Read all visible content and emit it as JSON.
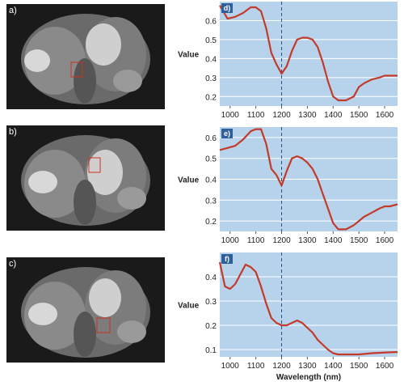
{
  "images": [
    {
      "label": "a)"
    },
    {
      "label": "b)"
    },
    {
      "label": "c)"
    }
  ],
  "chart_data": [
    {
      "type": "line",
      "panel_label": "d)",
      "ylabel": "Value",
      "xlabel": "",
      "xlim": [
        960,
        1650
      ],
      "ylim": [
        0.15,
        0.7
      ],
      "yticks": [
        0.2,
        0.3,
        0.4,
        0.5,
        0.6
      ],
      "xticks": [
        1000,
        1100,
        1200,
        1300,
        1400,
        1500,
        1600
      ],
      "grid": true,
      "dashed_line_x": 1200,
      "line_color": "#c43a2a",
      "x": [
        960,
        990,
        1020,
        1050,
        1080,
        1100,
        1120,
        1140,
        1160,
        1180,
        1200,
        1220,
        1240,
        1260,
        1280,
        1300,
        1320,
        1340,
        1360,
        1380,
        1400,
        1420,
        1450,
        1480,
        1500,
        1520,
        1550,
        1580,
        1600,
        1620,
        1650
      ],
      "y": [
        0.68,
        0.61,
        0.62,
        0.64,
        0.67,
        0.67,
        0.65,
        0.56,
        0.43,
        0.37,
        0.32,
        0.36,
        0.44,
        0.5,
        0.51,
        0.51,
        0.5,
        0.46,
        0.38,
        0.28,
        0.2,
        0.18,
        0.18,
        0.2,
        0.25,
        0.27,
        0.29,
        0.3,
        0.31,
        0.31,
        0.31
      ]
    },
    {
      "type": "line",
      "panel_label": "e)",
      "ylabel": "Value",
      "xlabel": "",
      "xlim": [
        960,
        1650
      ],
      "ylim": [
        0.15,
        0.65
      ],
      "yticks": [
        0.2,
        0.3,
        0.4,
        0.5,
        0.6
      ],
      "xticks": [
        1000,
        1100,
        1200,
        1300,
        1400,
        1500,
        1600
      ],
      "grid": true,
      "dashed_line_x": 1200,
      "line_color": "#c43a2a",
      "x": [
        960,
        990,
        1020,
        1050,
        1080,
        1100,
        1120,
        1140,
        1160,
        1180,
        1200,
        1220,
        1240,
        1260,
        1280,
        1300,
        1320,
        1340,
        1360,
        1380,
        1400,
        1420,
        1450,
        1480,
        1500,
        1520,
        1550,
        1580,
        1600,
        1620,
        1650
      ],
      "y": [
        0.54,
        0.55,
        0.56,
        0.59,
        0.63,
        0.64,
        0.64,
        0.57,
        0.45,
        0.42,
        0.37,
        0.44,
        0.5,
        0.51,
        0.5,
        0.48,
        0.45,
        0.4,
        0.33,
        0.26,
        0.19,
        0.16,
        0.16,
        0.18,
        0.2,
        0.22,
        0.24,
        0.26,
        0.27,
        0.27,
        0.28
      ]
    },
    {
      "type": "line",
      "panel_label": "f)",
      "ylabel": "Value",
      "xlabel": "Wavelength (nm)",
      "xlim": [
        960,
        1650
      ],
      "ylim": [
        0.07,
        0.5
      ],
      "yticks": [
        0.1,
        0.2,
        0.3,
        0.4
      ],
      "xticks": [
        1000,
        1100,
        1200,
        1300,
        1400,
        1500,
        1600
      ],
      "grid": true,
      "dashed_line_x": 1200,
      "line_color": "#c43a2a",
      "x": [
        960,
        980,
        1000,
        1020,
        1040,
        1060,
        1080,
        1100,
        1120,
        1140,
        1160,
        1180,
        1200,
        1220,
        1240,
        1260,
        1280,
        1300,
        1320,
        1340,
        1360,
        1380,
        1400,
        1420,
        1450,
        1500,
        1550,
        1600,
        1650
      ],
      "y": [
        0.46,
        0.36,
        0.35,
        0.37,
        0.41,
        0.45,
        0.44,
        0.42,
        0.36,
        0.29,
        0.23,
        0.21,
        0.2,
        0.2,
        0.21,
        0.22,
        0.21,
        0.19,
        0.17,
        0.14,
        0.12,
        0.1,
        0.085,
        0.08,
        0.08,
        0.08,
        0.085,
        0.088,
        0.09
      ]
    }
  ]
}
